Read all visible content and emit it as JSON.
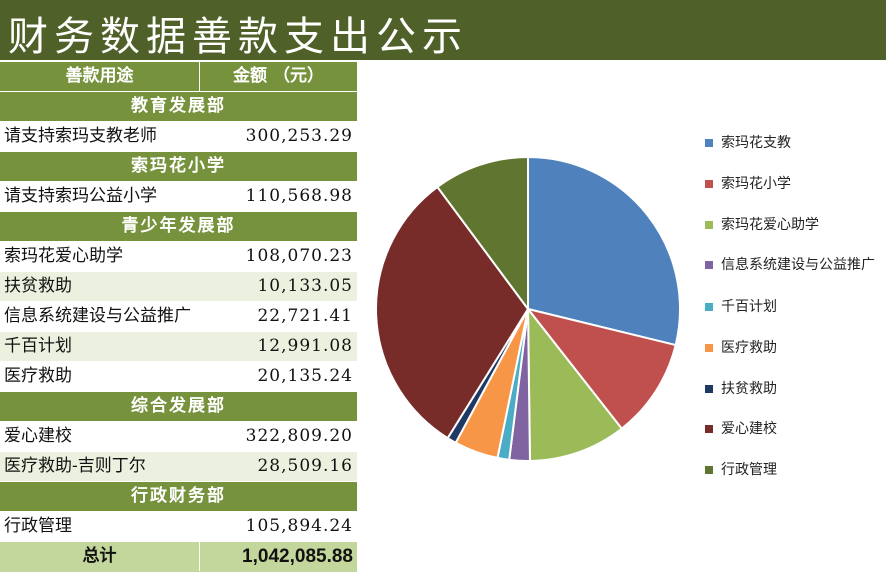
{
  "title": "财务数据善款支出公示",
  "table": {
    "header": {
      "col1": "善款用途",
      "col2": "金额 （元）"
    },
    "sections": [
      {
        "name": "教育发展部",
        "items": [
          {
            "label": "请支持索玛支教老师",
            "amount": "300,253.29"
          }
        ]
      },
      {
        "name": "索玛花小学",
        "items": [
          {
            "label": "请支持索玛公益小学",
            "amount": "110,568.98"
          }
        ]
      },
      {
        "name": "青少年发展部",
        "items": [
          {
            "label": "索玛花爱心助学",
            "amount": "108,070.23"
          },
          {
            "label": "扶贫救助",
            "amount": "10,133.05"
          },
          {
            "label": "信息系统建设与公益推广",
            "amount": "22,721.41"
          },
          {
            "label": "千百计划",
            "amount": "12,991.08"
          },
          {
            "label": "医疗救助",
            "amount": "20,135.24"
          }
        ]
      },
      {
        "name": "综合发展部",
        "items": [
          {
            "label": "爱心建校",
            "amount": "322,809.20"
          },
          {
            "label": "医疗救助-吉则丁尔",
            "amount": "28,509.16"
          }
        ]
      },
      {
        "name": "行政财务部",
        "items": [
          {
            "label": "行政管理",
            "amount": "105,894.24"
          }
        ]
      }
    ],
    "total": {
      "label": "总计",
      "amount": "1,042,085.88"
    }
  },
  "chart_data": {
    "type": "pie",
    "title": "",
    "slices": [
      {
        "name": "索玛花支教",
        "value": 300253.29,
        "color": "#4f81bd"
      },
      {
        "name": "索玛花小学",
        "value": 110568.98,
        "color": "#c0504d"
      },
      {
        "name": "索玛花爱心助学",
        "value": 108070.23,
        "color": "#9bbb59"
      },
      {
        "name": "信息系统建设与公益推广",
        "value": 22721.41,
        "color": "#8064a2"
      },
      {
        "name": "千百计划",
        "value": 12991.08,
        "color": "#4bacc6"
      },
      {
        "name": "医疗救助",
        "value": 48644.4,
        "color": "#f79646"
      },
      {
        "name": "扶贫救助",
        "value": 10133.05,
        "color": "#1f3864"
      },
      {
        "name": "爱心建校",
        "value": 322809.2,
        "color": "#772c2a"
      },
      {
        "name": "行政管理",
        "value": 105894.24,
        "color": "#5f7530"
      }
    ],
    "legend_position": "right"
  },
  "colors": {
    "header_bg": "#4f6128",
    "section_bg": "#76923c",
    "row_alt": "#ebf1de",
    "total_bg": "#c3d69b"
  }
}
